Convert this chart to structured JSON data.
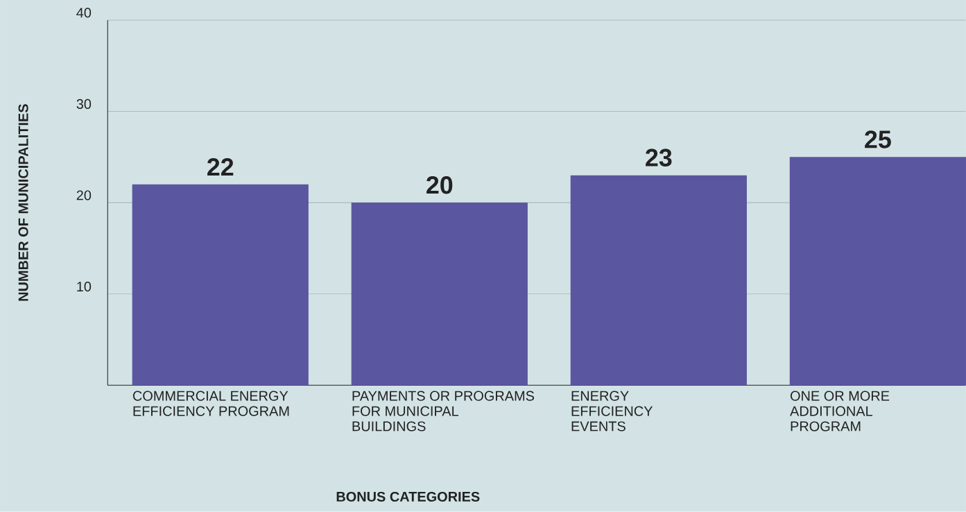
{
  "chart_data": {
    "type": "bar",
    "xlabel": "BONUS CATEGORIES",
    "ylabel": "NUMBER OF MUNICIPALITIES",
    "categories": [
      "COMMERCIAL ENERGY EFFICIENCY PROGRAM",
      "PAYMENTS OR PROGRAMS FOR MUNICIPAL BUILDINGS",
      "ENERGY EFFICIENCY EVENTS",
      "ONE OR MORE ADDITIONAL PROGRAM"
    ],
    "values": [
      22,
      20,
      23,
      25
    ],
    "color": "#5b56a0",
    "ylim": [
      0,
      40
    ],
    "yticks": [
      10,
      20,
      30,
      40
    ],
    "grid": "y",
    "data_labels": true
  }
}
